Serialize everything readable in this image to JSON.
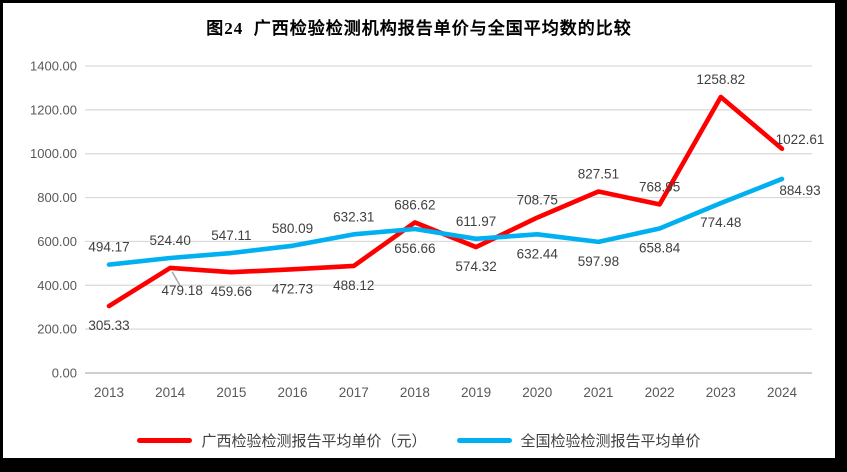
{
  "title": "图24  广西检验检测机构报告单价与全国平均数的比较",
  "chart_data": {
    "type": "line",
    "title": "图24  广西检验检测机构报告单价与全国平均数的比较",
    "categories": [
      "2013",
      "2014",
      "2015",
      "2016",
      "2017",
      "2018",
      "2019",
      "2020",
      "2021",
      "2022",
      "2023",
      "2024"
    ],
    "series": [
      {
        "name": "广西检验检测报告平均单价（元）",
        "color": "#FF0000",
        "values": [
          305.33,
          479.18,
          459.66,
          472.73,
          488.12,
          686.62,
          574.32,
          708.75,
          827.51,
          768.95,
          1258.82,
          1022.61
        ]
      },
      {
        "name": "全国检验检测报告平均单价",
        "color": "#00B0F0",
        "values": [
          494.17,
          524.4,
          547.11,
          580.09,
          632.31,
          656.66,
          611.97,
          632.44,
          597.98,
          658.84,
          774.48,
          884.93
        ]
      }
    ],
    "ylim": [
      0,
      1400
    ],
    "y_ticks": [
      "0.00",
      "200.00",
      "400.00",
      "600.00",
      "800.00",
      "1000.00",
      "1200.00",
      "1400.00"
    ],
    "xlabel": "",
    "ylabel": "",
    "grid": true,
    "data_labels": true,
    "label_format": "0.00",
    "legend_position": "bottom",
    "label_rule": "higher series labeled above point, lower series labeled below point",
    "leader_line": {
      "category_index": 1,
      "series_index": 0,
      "label": "479.18"
    },
    "colors": {
      "label": "#404040",
      "axis": "#595959",
      "gridline": "#D9D9D9",
      "baseline": "#BFBFBF",
      "leader": "#A6A6A6"
    }
  },
  "frame": {
    "background": "#FFFFFF",
    "border_color": "#000000"
  }
}
